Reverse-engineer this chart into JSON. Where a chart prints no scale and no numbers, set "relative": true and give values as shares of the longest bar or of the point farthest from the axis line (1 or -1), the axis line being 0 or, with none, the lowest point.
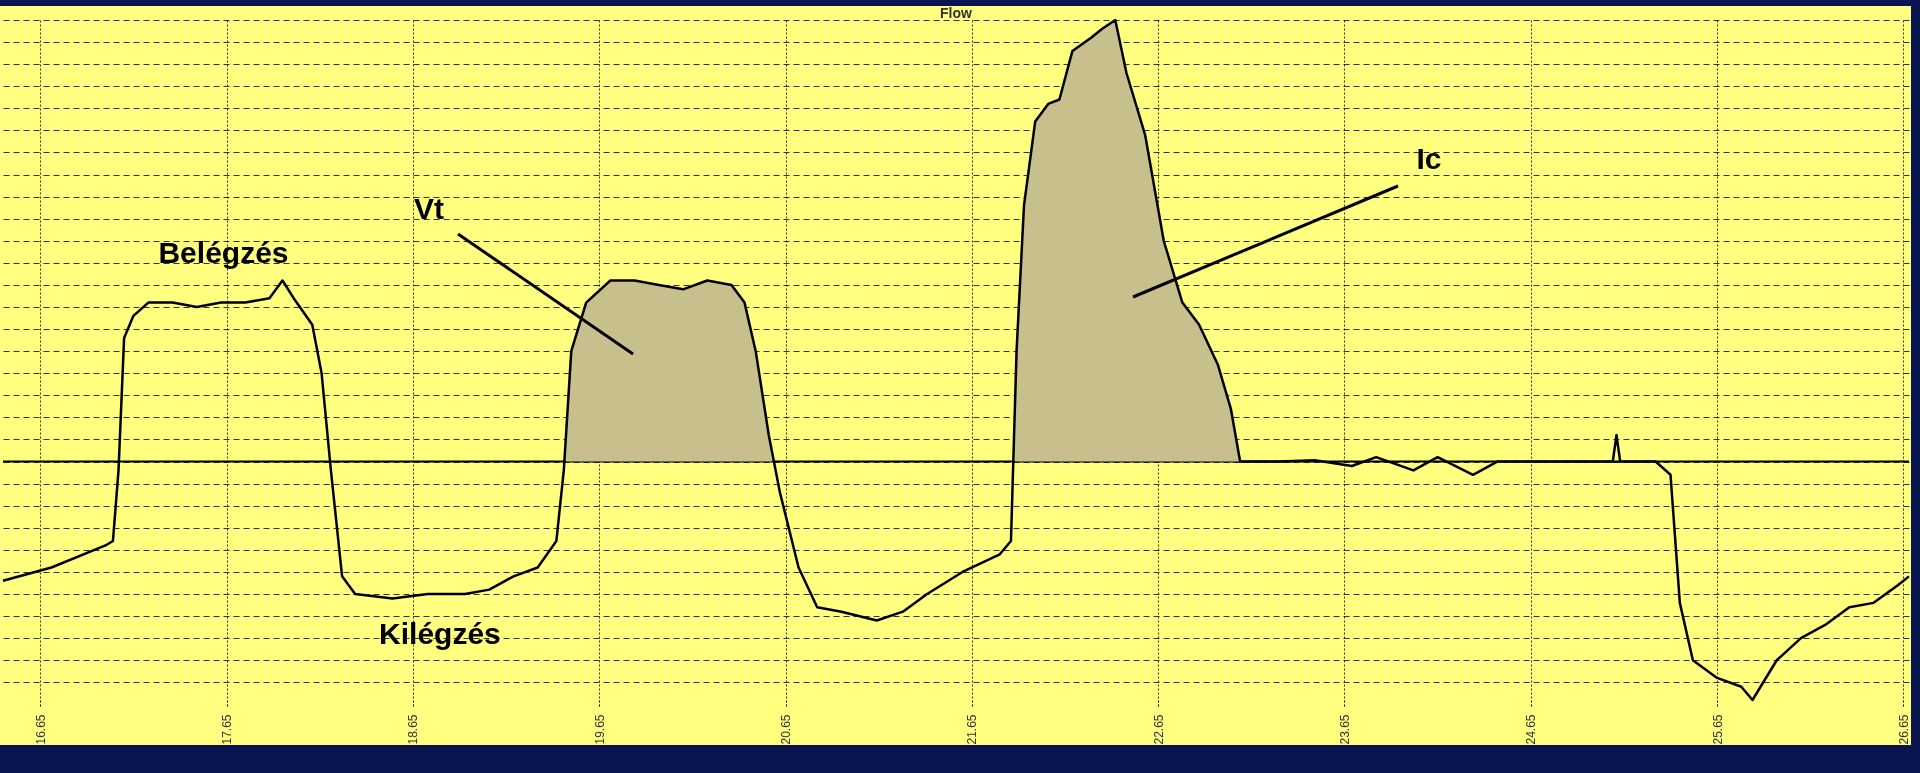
{
  "chart_data": {
    "type": "line",
    "title": "Flow",
    "relative": true,
    "grid": true,
    "marker": "none",
    "line_style": "solid",
    "xlim": [
      16.45,
      26.68
    ],
    "xticks": [
      16.65,
      17.65,
      18.65,
      19.65,
      20.65,
      21.65,
      22.65,
      23.65,
      24.65,
      25.65,
      26.65
    ],
    "annotations": [
      {
        "text": "Belégzés",
        "x": 17.95,
        "y": 0.41
      },
      {
        "text": "Kilégzés",
        "x": 18.5,
        "y": -0.31
      },
      "Vt",
      "Ic"
    ],
    "series": [
      {
        "type": "area",
        "color": "#c8c08c",
        "x": [
          19.47,
          19.5,
          19.58,
          19.71,
          19.84,
          19.97,
          20.1,
          20.23,
          20.36,
          20.43,
          20.49,
          20.56,
          20.58
        ],
        "values": [
          0,
          0.25,
          0.36,
          0.41,
          0.41,
          0.4,
          0.39,
          0.41,
          0.4,
          0.36,
          0.25,
          0.06,
          0
        ]
      },
      {
        "type": "area",
        "color": "#c8c08c",
        "x": [
          21.88,
          21.89,
          21.93,
          21.99,
          22.06,
          22.12,
          22.19,
          22.29,
          22.35,
          22.42,
          22.48,
          22.58,
          22.68,
          22.78,
          22.87,
          22.97,
          23.04,
          23.09
        ],
        "values": [
          0,
          0.25,
          0.58,
          0.77,
          0.81,
          0.82,
          0.93,
          0.96,
          0.98,
          1,
          0.88,
          0.74,
          0.5,
          0.36,
          0.31,
          0.22,
          0.12,
          0
        ]
      },
      {
        "color": "#000000",
        "x": [
          16.45,
          16.71,
          17.0,
          17.04,
          17.07,
          17.1,
          17.15,
          17.23,
          17.36,
          17.49,
          17.62,
          17.75,
          17.88,
          17.95,
          18.01,
          18.11,
          18.16,
          18.21,
          18.27,
          18.34,
          18.54,
          18.73,
          18.93,
          19.06,
          19.19,
          19.32,
          19.42,
          19.46,
          19.5,
          19.58,
          19.71,
          19.84,
          19.97,
          20.1,
          20.23,
          20.36,
          20.43,
          20.49,
          20.56,
          20.62,
          20.72,
          20.82,
          20.95,
          21.14,
          21.28,
          21.41,
          21.6,
          21.8,
          21.86,
          21.89,
          21.93,
          21.99,
          22.06,
          22.12,
          22.19,
          22.29,
          22.35,
          22.42,
          22.48,
          22.58,
          22.68,
          22.78,
          22.87,
          22.97,
          23.04,
          23.09,
          23.3,
          23.49,
          23.69,
          23.82,
          24.02,
          24.15,
          24.34,
          24.47,
          24.93,
          25.09,
          25.11,
          25.13,
          25.32,
          25.4,
          25.45,
          25.52,
          25.65,
          25.78,
          25.84,
          25.97,
          26.1,
          26.23,
          26.36,
          26.49,
          26.62,
          26.68
        ],
        "values": [
          -0.27,
          -0.24,
          -0.19,
          -0.18,
          -0.02,
          0.28,
          0.33,
          0.36,
          0.36,
          0.35,
          0.36,
          0.36,
          0.37,
          0.41,
          0.37,
          0.31,
          0.2,
          -0.02,
          -0.26,
          -0.3,
          -0.31,
          -0.3,
          -0.3,
          -0.29,
          -0.26,
          -0.24,
          -0.18,
          -0.02,
          0.25,
          0.36,
          0.41,
          0.41,
          0.4,
          0.39,
          0.41,
          0.4,
          0.36,
          0.25,
          0.06,
          -0.07,
          -0.24,
          -0.33,
          -0.34,
          -0.36,
          -0.34,
          -0.3,
          -0.25,
          -0.21,
          -0.18,
          0.25,
          0.58,
          0.77,
          0.81,
          0.82,
          0.93,
          0.96,
          0.98,
          1,
          0.88,
          0.74,
          0.5,
          0.36,
          0.31,
          0.22,
          0.12,
          0,
          0,
          0.003,
          -0.01,
          0.01,
          -0.02,
          0.01,
          -0.03,
          0,
          0,
          0,
          0.06,
          0,
          0,
          -0.03,
          -0.32,
          -0.45,
          -0.49,
          -0.51,
          -0.54,
          -0.45,
          -0.4,
          -0.37,
          -0.33,
          -0.32,
          -0.28,
          -0.26
        ]
      }
    ]
  }
}
